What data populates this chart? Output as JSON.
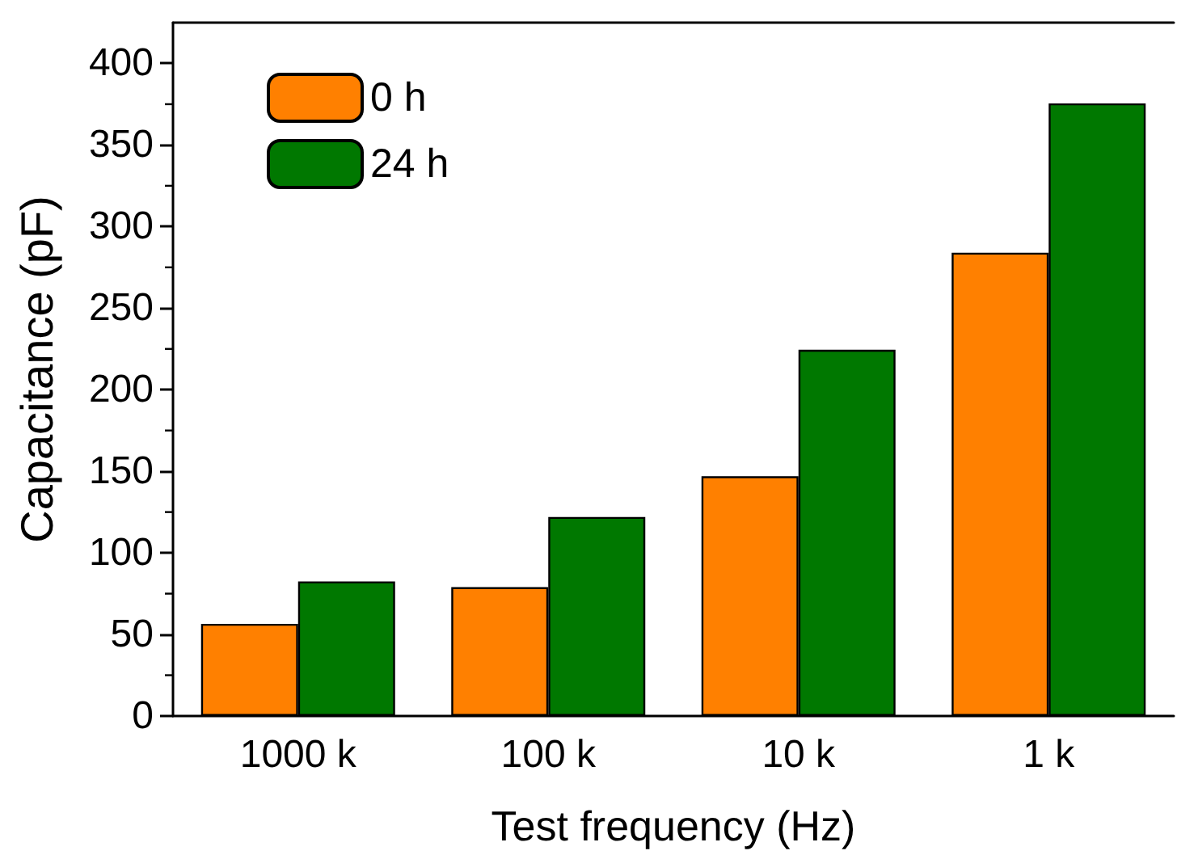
{
  "chart_data": {
    "type": "bar",
    "xlabel": "Test frequency (Hz)",
    "ylabel": "Capacitance (pF)",
    "categories": [
      "1000 k",
      "100 k",
      "10 k",
      "1 k"
    ],
    "series": [
      {
        "name": "0 h",
        "color": "#ff8000",
        "values": [
          56.5,
          79,
          147,
          284
        ]
      },
      {
        "name": "24 h",
        "color": "#007800",
        "values": [
          82.5,
          122,
          224.5,
          375.5
        ]
      }
    ],
    "ylim": [
      0,
      425
    ],
    "yticks": [
      0,
      50,
      100,
      150,
      200,
      250,
      300,
      350,
      400
    ],
    "grid": false,
    "legend": "top left"
  }
}
